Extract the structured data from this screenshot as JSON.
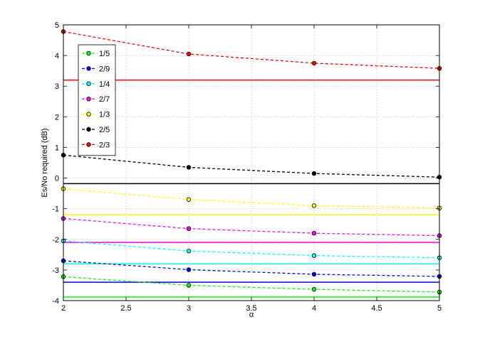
{
  "chart_data": {
    "type": "line",
    "title": "",
    "xlabel": "α",
    "ylabel": "Es/No required (dB)",
    "xlim": [
      2,
      5
    ],
    "ylim": [
      -4,
      5
    ],
    "x_ticks": [
      "2",
      "2.5",
      "3",
      "3.5",
      "4",
      "4.5",
      "5"
    ],
    "y_ticks": [
      "-4",
      "-3",
      "-2",
      "-1",
      "0",
      "1",
      "2",
      "3",
      "4",
      "5"
    ],
    "grid": true,
    "legend_position": "top-left",
    "x": [
      2,
      3,
      4,
      5
    ],
    "series": [
      {
        "name": "1/5",
        "color": "#00ff00",
        "values": [
          -3.22,
          -3.5,
          -3.63,
          -3.72
        ],
        "reference": -3.88
      },
      {
        "name": "2/9",
        "color": "#0000ff",
        "values": [
          -2.7,
          -2.99,
          -3.14,
          -3.21
        ],
        "reference": -3.4
      },
      {
        "name": "1/4",
        "color": "#00ffff",
        "values": [
          -2.05,
          -2.38,
          -2.53,
          -2.6
        ],
        "reference": -2.8
      },
      {
        "name": "2/7",
        "color": "#ff00ff",
        "values": [
          -1.32,
          -1.65,
          -1.8,
          -1.88
        ],
        "reference": -2.1
      },
      {
        "name": "1/3",
        "color": "#ffff00",
        "values": [
          -0.35,
          -0.7,
          -0.9,
          -0.98
        ],
        "reference": -1.2
      },
      {
        "name": "2/5",
        "color": "#000000",
        "values": [
          0.75,
          0.35,
          0.15,
          0.03
        ],
        "reference": -0.18
      },
      {
        "name": "2/3",
        "color": "#ff0000",
        "values": [
          4.78,
          4.05,
          3.75,
          3.58
        ],
        "reference": 3.2
      }
    ]
  }
}
